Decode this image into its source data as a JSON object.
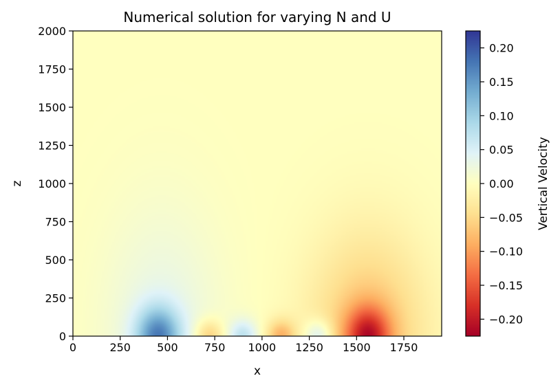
{
  "chart_data": {
    "type": "heatmap",
    "title": "Numerical solution for varying N and U",
    "xlabel": "x",
    "ylabel": "z",
    "xlim": [
      0,
      1950
    ],
    "ylim": [
      0,
      2000
    ],
    "x_ticks": [
      0,
      250,
      500,
      750,
      1000,
      1250,
      1500,
      1750
    ],
    "y_ticks": [
      0,
      250,
      500,
      750,
      1000,
      1250,
      1500,
      1750,
      2000
    ],
    "colorbar": {
      "label": "Vertical Velocity",
      "range": [
        -0.225,
        0.225
      ],
      "ticks": [
        -0.2,
        -0.15,
        -0.1,
        -0.05,
        0.0,
        0.05,
        0.1,
        0.15,
        0.2
      ],
      "tick_labels": [
        "−0.20",
        "−0.15",
        "−0.10",
        "−0.05",
        "0.00",
        "0.05",
        "0.10",
        "0.15",
        "0.20"
      ],
      "colormap": "RdYlBu"
    },
    "features": [
      {
        "x": 450,
        "z": 0,
        "value": 0.22,
        "kind": "updraft-lobe"
      },
      {
        "x": 720,
        "z": 0,
        "value": -0.07,
        "kind": "downdraft-lobe"
      },
      {
        "x": 900,
        "z": 0,
        "value": 0.07,
        "kind": "updraft-lobe"
      },
      {
        "x": 1100,
        "z": 0,
        "value": -0.08,
        "kind": "downdraft-lobe"
      },
      {
        "x": 1300,
        "z": 0,
        "value": 0.07,
        "kind": "updraft-lobe"
      },
      {
        "x": 1560,
        "z": 0,
        "value": -0.22,
        "kind": "downdraft-lobe"
      }
    ],
    "grid": false
  }
}
